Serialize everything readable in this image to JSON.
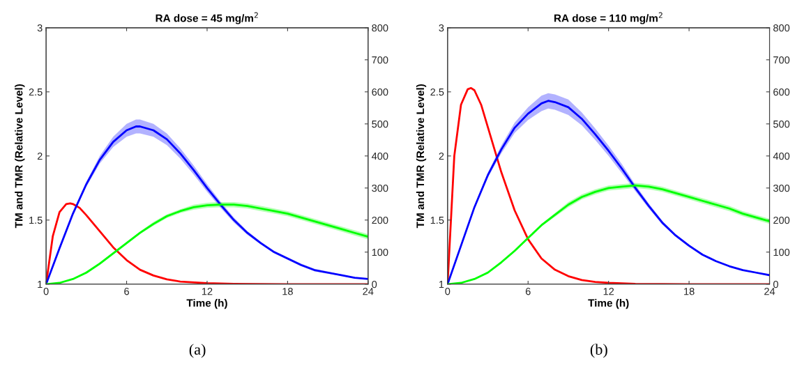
{
  "chart_data": [
    {
      "type": "line",
      "title": "RA dose = 45 mg/m$^{2}$",
      "xlabel": "Time (h)",
      "ylabel": "TM and TMR (Relative Level)",
      "xlim": [
        0,
        24
      ],
      "xticks": [
        0,
        6,
        12,
        18,
        24
      ],
      "ylim": [
        1,
        3
      ],
      "yticks": [
        1,
        1.5,
        2,
        2.5,
        3
      ],
      "y2lim": [
        0,
        800
      ],
      "y2ticks": [
        0,
        100,
        200,
        300,
        400,
        500,
        600,
        700,
        800
      ],
      "grid": false,
      "annotations": [
        "(a)"
      ],
      "series": [
        {
          "color": "#0000ff",
          "x": [
            0,
            1,
            2,
            3,
            4,
            5,
            6,
            6.7,
            7,
            8,
            9,
            10,
            11,
            12,
            13,
            14,
            15,
            16,
            17,
            18,
            19,
            20,
            21,
            22,
            23,
            24
          ],
          "values": [
            1.0,
            1.28,
            1.55,
            1.78,
            1.97,
            2.11,
            2.2,
            2.23,
            2.23,
            2.2,
            2.13,
            2.02,
            1.89,
            1.75,
            1.62,
            1.5,
            1.4,
            1.32,
            1.25,
            1.2,
            1.15,
            1.11,
            1.09,
            1.07,
            1.05,
            1.04
          ],
          "lower": [
            1.0,
            1.275,
            1.54,
            1.76,
            1.94,
            2.07,
            2.15,
            2.175,
            2.175,
            2.15,
            2.085,
            1.98,
            1.855,
            1.72,
            1.595,
            1.48,
            1.385,
            1.31,
            1.24,
            1.19,
            1.14,
            1.1,
            1.08,
            1.065,
            1.045,
            1.035
          ],
          "upper": [
            1.0,
            1.285,
            1.56,
            1.8,
            2.0,
            2.15,
            2.25,
            2.285,
            2.285,
            2.25,
            2.175,
            2.06,
            1.925,
            1.78,
            1.645,
            1.52,
            1.415,
            1.33,
            1.26,
            1.21,
            1.16,
            1.12,
            1.1,
            1.075,
            1.055,
            1.045
          ]
        },
        {
          "color": "#00ff00",
          "x": [
            0,
            1,
            2,
            3,
            4,
            5,
            6,
            7,
            8,
            9,
            10,
            11,
            12,
            13,
            14,
            15,
            16,
            17,
            18,
            19,
            20,
            21,
            22,
            23,
            24
          ],
          "values": [
            1.0,
            1.01,
            1.04,
            1.09,
            1.16,
            1.24,
            1.32,
            1.4,
            1.47,
            1.53,
            1.57,
            1.6,
            1.615,
            1.62,
            1.62,
            1.61,
            1.59,
            1.57,
            1.55,
            1.52,
            1.49,
            1.46,
            1.43,
            1.4,
            1.37
          ],
          "lower": [
            1.0,
            1.01,
            1.035,
            1.08,
            1.15,
            1.23,
            1.31,
            1.39,
            1.455,
            1.515,
            1.555,
            1.58,
            1.595,
            1.6,
            1.6,
            1.59,
            1.57,
            1.55,
            1.53,
            1.5,
            1.47,
            1.44,
            1.41,
            1.38,
            1.35
          ],
          "upper": [
            1.0,
            1.01,
            1.045,
            1.1,
            1.17,
            1.25,
            1.33,
            1.41,
            1.485,
            1.545,
            1.585,
            1.62,
            1.635,
            1.64,
            1.64,
            1.63,
            1.61,
            1.59,
            1.57,
            1.54,
            1.51,
            1.48,
            1.45,
            1.42,
            1.39
          ]
        },
        {
          "color": "#ff0000",
          "axis": "y2",
          "x": [
            0,
            0.5,
            1,
            1.5,
            1.8,
            2,
            2.5,
            3,
            4,
            5,
            6,
            7,
            8,
            9,
            10,
            12,
            14,
            18,
            24
          ],
          "values": [
            0,
            150,
            225,
            250,
            252,
            250,
            238,
            215,
            165,
            115,
            75,
            45,
            27,
            15,
            8,
            3,
            1,
            0,
            0
          ]
        }
      ]
    },
    {
      "type": "line",
      "title": "RA dose = 110 mg/m$^{2}$",
      "xlabel": "Time (h)",
      "ylabel": "TM and TMR (Relative Level)",
      "xlim": [
        0,
        24
      ],
      "xticks": [
        0,
        6,
        12,
        18,
        24
      ],
      "ylim": [
        1,
        3
      ],
      "yticks": [
        1,
        1.5,
        2,
        2.5,
        3
      ],
      "y2lim": [
        0,
        800
      ],
      "y2ticks": [
        0,
        100,
        200,
        300,
        400,
        500,
        600,
        700,
        800
      ],
      "grid": false,
      "annotations": [
        "(b)"
      ],
      "series": [
        {
          "color": "#0000ff",
          "x": [
            0,
            1,
            2,
            3,
            4,
            5,
            6,
            7,
            7.5,
            8,
            9,
            10,
            11,
            12,
            13,
            14,
            15,
            16,
            17,
            18,
            19,
            20,
            21,
            22,
            23,
            24
          ],
          "values": [
            1.0,
            1.3,
            1.6,
            1.85,
            2.05,
            2.22,
            2.33,
            2.41,
            2.43,
            2.42,
            2.38,
            2.29,
            2.17,
            2.04,
            1.9,
            1.75,
            1.61,
            1.48,
            1.38,
            1.3,
            1.23,
            1.18,
            1.14,
            1.11,
            1.09,
            1.07
          ],
          "lower": [
            1.0,
            1.295,
            1.59,
            1.83,
            2.02,
            2.18,
            2.28,
            2.35,
            2.37,
            2.36,
            2.32,
            2.24,
            2.125,
            2.0,
            1.865,
            1.725,
            1.59,
            1.465,
            1.37,
            1.29,
            1.225,
            1.175,
            1.135,
            1.105,
            1.085,
            1.065
          ],
          "upper": [
            1.0,
            1.305,
            1.61,
            1.87,
            2.08,
            2.26,
            2.38,
            2.47,
            2.49,
            2.48,
            2.44,
            2.34,
            2.215,
            2.08,
            1.935,
            1.775,
            1.63,
            1.495,
            1.39,
            1.31,
            1.235,
            1.185,
            1.145,
            1.115,
            1.095,
            1.075
          ]
        },
        {
          "color": "#00ff00",
          "x": [
            0,
            1,
            2,
            3,
            4,
            5,
            6,
            7,
            8,
            9,
            10,
            11,
            12,
            13,
            14,
            15,
            16,
            17,
            18,
            19,
            20,
            21,
            22,
            23,
            24
          ],
          "values": [
            1.0,
            1.01,
            1.04,
            1.09,
            1.17,
            1.26,
            1.36,
            1.46,
            1.54,
            1.62,
            1.68,
            1.72,
            1.75,
            1.76,
            1.77,
            1.76,
            1.74,
            1.71,
            1.68,
            1.65,
            1.62,
            1.59,
            1.55,
            1.52,
            1.49
          ],
          "lower": [
            1.0,
            1.01,
            1.035,
            1.08,
            1.16,
            1.25,
            1.35,
            1.45,
            1.525,
            1.6,
            1.66,
            1.7,
            1.73,
            1.74,
            1.75,
            1.74,
            1.72,
            1.69,
            1.66,
            1.63,
            1.6,
            1.57,
            1.53,
            1.5,
            1.47
          ],
          "upper": [
            1.0,
            1.01,
            1.045,
            1.1,
            1.18,
            1.27,
            1.37,
            1.47,
            1.555,
            1.64,
            1.7,
            1.74,
            1.77,
            1.78,
            1.79,
            1.78,
            1.76,
            1.73,
            1.7,
            1.67,
            1.64,
            1.61,
            1.57,
            1.54,
            1.51
          ]
        },
        {
          "color": "#ff0000",
          "axis": "y2",
          "x": [
            0,
            0.25,
            0.5,
            1,
            1.5,
            1.75,
            2,
            2.5,
            3,
            4,
            5,
            6,
            7,
            8,
            9,
            10,
            11,
            12,
            14,
            18,
            24
          ],
          "values": [
            0,
            200,
            400,
            560,
            608,
            612,
            605,
            560,
            490,
            350,
            230,
            140,
            80,
            45,
            25,
            13,
            7,
            4,
            1,
            0,
            0
          ]
        }
      ]
    }
  ]
}
